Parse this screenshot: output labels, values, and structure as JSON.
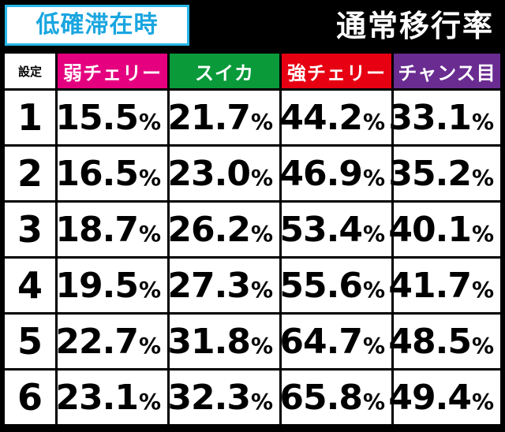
{
  "badge": {
    "text": "低確滞在時"
  },
  "headline": {
    "text": "通常移行率"
  },
  "table": {
    "corner_label": "設定",
    "columns": [
      {
        "label": "弱チェリー",
        "color": "#e4007f"
      },
      {
        "label": "スイカ",
        "color": "#0a9a3a"
      },
      {
        "label": "強チェリー",
        "color": "#e60012"
      },
      {
        "label": "チャンス目",
        "color": "#6a2c91"
      }
    ],
    "rows": [
      {
        "setting": "1",
        "values": [
          "15.5",
          "21.7",
          "44.2",
          "33.1"
        ]
      },
      {
        "setting": "2",
        "values": [
          "16.5",
          "23.0",
          "46.9",
          "35.2"
        ]
      },
      {
        "setting": "3",
        "values": [
          "18.7",
          "26.2",
          "53.4",
          "40.1"
        ]
      },
      {
        "setting": "4",
        "values": [
          "19.5",
          "27.3",
          "55.6",
          "41.7"
        ]
      },
      {
        "setting": "5",
        "values": [
          "22.7",
          "31.8",
          "64.7",
          "48.5"
        ]
      },
      {
        "setting": "6",
        "values": [
          "23.1",
          "32.3",
          "65.8",
          "49.4"
        ]
      }
    ],
    "unit": "%"
  }
}
